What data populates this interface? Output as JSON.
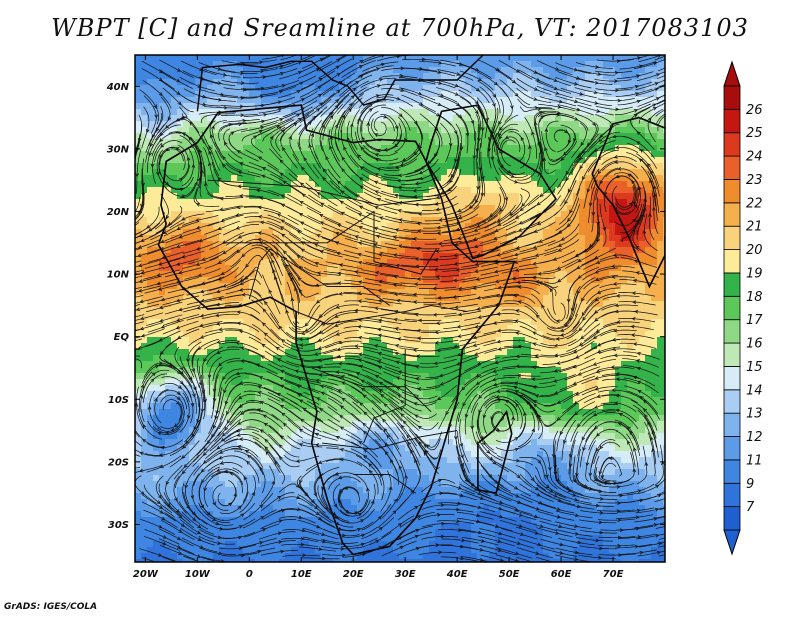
{
  "title": "WBPT [C] and Sreamline at 700hPa, VT: 2017083103",
  "credit": "GrADS: IGES/COLA",
  "map": {
    "variable": "WBPT",
    "units": "C",
    "level": "700hPa",
    "valid_time": "2017083103",
    "lon_range": [
      -22,
      80
    ],
    "lat_range": [
      -36,
      45
    ],
    "lat_ticks": [
      {
        "value": 40,
        "label": "40N"
      },
      {
        "value": 30,
        "label": "30N"
      },
      {
        "value": 20,
        "label": "20N"
      },
      {
        "value": 10,
        "label": "10N"
      },
      {
        "value": 0,
        "label": "EQ"
      },
      {
        "value": -10,
        "label": "10S"
      },
      {
        "value": -20,
        "label": "20S"
      },
      {
        "value": -30,
        "label": "30S"
      }
    ],
    "lon_ticks": [
      {
        "value": -20,
        "label": "20W"
      },
      {
        "value": -10,
        "label": "10W"
      },
      {
        "value": 0,
        "label": "0"
      },
      {
        "value": 10,
        "label": "10E"
      },
      {
        "value": 20,
        "label": "20E"
      },
      {
        "value": 30,
        "label": "30E"
      },
      {
        "value": 40,
        "label": "40E"
      },
      {
        "value": 50,
        "label": "50E"
      },
      {
        "value": 60,
        "label": "60E"
      },
      {
        "value": 70,
        "label": "70E"
      }
    ]
  },
  "colorbar": {
    "levels": [
      7,
      9,
      11,
      12,
      13,
      14,
      15,
      16,
      17,
      18,
      19,
      20,
      21,
      22,
      23,
      24,
      25,
      26
    ],
    "colors": [
      "#1f5fd0",
      "#2f73db",
      "#3f86e3",
      "#5b9be8",
      "#7fb3ee",
      "#a9cdf3",
      "#d6ecf7",
      "#bfe8b7",
      "#8fd886",
      "#5cc85a",
      "#33b34a",
      "#fdeb9a",
      "#f9d27c",
      "#f5b04d",
      "#ef8c2e",
      "#e9602a",
      "#dc3a1f",
      "#c41712",
      "#a80d0d"
    ],
    "bottom_arrow_color": "#1f5fd0",
    "top_arrow_color": "#a80d0d"
  }
}
